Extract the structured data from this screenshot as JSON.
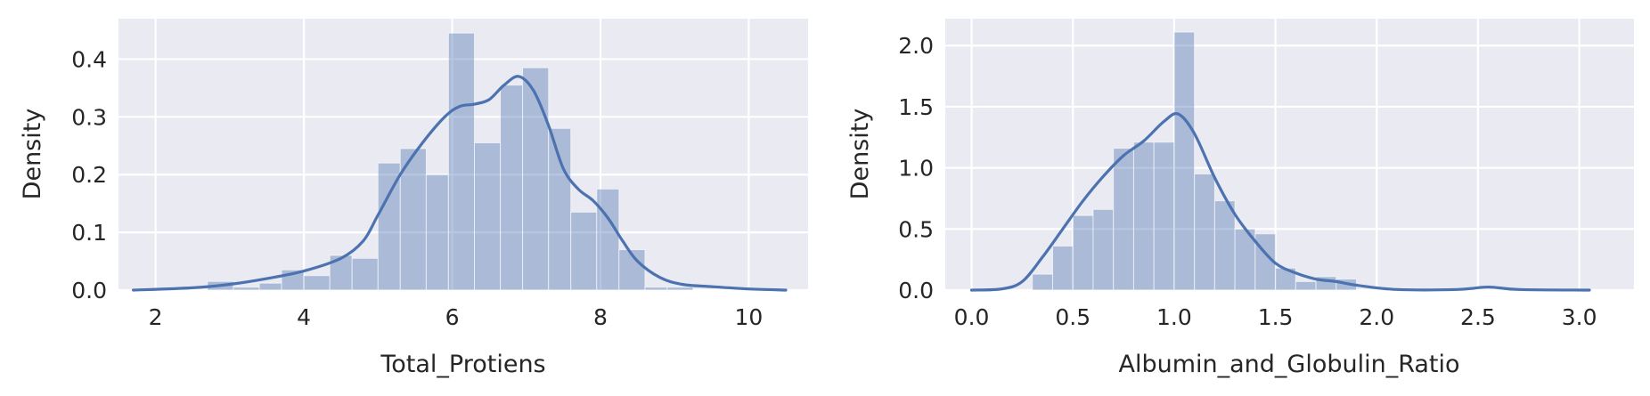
{
  "colors": {
    "series": "#4c72b0",
    "plot_background": "#eaeaf2",
    "grid": "#ffffff"
  },
  "chart_data": [
    {
      "type": "histogram",
      "xlabel": "Total_Protiens",
      "ylabel": "Density",
      "xlim": [
        1.5,
        10.8
      ],
      "ylim": [
        0.0,
        0.47
      ],
      "xticks": [
        2,
        4,
        6,
        8,
        10
      ],
      "yticks": [
        0.0,
        0.1,
        0.2,
        0.3,
        0.4
      ],
      "ytick_labels": [
        "0.0",
        "0.1",
        "0.2",
        "0.3",
        "0.4"
      ],
      "grid": true,
      "bins": [
        {
          "x0": 2.7,
          "x1": 3.05,
          "density": 0.015
        },
        {
          "x0": 3.05,
          "x1": 3.4,
          "density": 0.005
        },
        {
          "x0": 3.4,
          "x1": 3.7,
          "density": 0.012
        },
        {
          "x0": 3.7,
          "x1": 4.0,
          "density": 0.035
        },
        {
          "x0": 4.0,
          "x1": 4.35,
          "density": 0.025
        },
        {
          "x0": 4.35,
          "x1": 4.65,
          "density": 0.06
        },
        {
          "x0": 4.65,
          "x1": 5.0,
          "density": 0.055
        },
        {
          "x0": 5.0,
          "x1": 5.3,
          "density": 0.22
        },
        {
          "x0": 5.3,
          "x1": 5.65,
          "density": 0.245
        },
        {
          "x0": 5.65,
          "x1": 5.95,
          "density": 0.2
        },
        {
          "x0": 5.95,
          "x1": 6.3,
          "density": 0.445
        },
        {
          "x0": 6.3,
          "x1": 6.65,
          "density": 0.255
        },
        {
          "x0": 6.65,
          "x1": 6.95,
          "density": 0.355
        },
        {
          "x0": 6.95,
          "x1": 7.3,
          "density": 0.385
        },
        {
          "x0": 7.3,
          "x1": 7.6,
          "density": 0.28
        },
        {
          "x0": 7.6,
          "x1": 7.95,
          "density": 0.135
        },
        {
          "x0": 7.95,
          "x1": 8.25,
          "density": 0.175
        },
        {
          "x0": 8.25,
          "x1": 8.6,
          "density": 0.07
        },
        {
          "x0": 8.6,
          "x1": 8.9,
          "density": 0.005
        },
        {
          "x0": 8.9,
          "x1": 9.25,
          "density": 0.005
        }
      ],
      "kde": {
        "x": [
          1.7,
          2.5,
          3.0,
          3.5,
          4.0,
          4.5,
          4.8,
          5.0,
          5.3,
          5.6,
          5.9,
          6.1,
          6.3,
          6.5,
          6.7,
          6.9,
          7.1,
          7.3,
          7.5,
          7.7,
          7.9,
          8.1,
          8.3,
          8.5,
          8.8,
          9.1,
          9.5,
          10.0,
          10.5
        ],
        "y": [
          0.0,
          0.004,
          0.01,
          0.02,
          0.033,
          0.055,
          0.085,
          0.13,
          0.2,
          0.255,
          0.3,
          0.318,
          0.322,
          0.33,
          0.355,
          0.37,
          0.345,
          0.285,
          0.21,
          0.175,
          0.155,
          0.125,
          0.085,
          0.05,
          0.022,
          0.01,
          0.006,
          0.002,
          0.0
        ]
      }
    },
    {
      "type": "histogram",
      "xlabel": "Albumin_and_Globulin_Ratio",
      "ylabel": "Density",
      "xlim": [
        -0.13,
        3.27
      ],
      "ylim": [
        0.0,
        2.22
      ],
      "xticks": [
        0.0,
        0.5,
        1.0,
        1.5,
        2.0,
        2.5,
        3.0
      ],
      "xtick_labels": [
        "0.0",
        "0.5",
        "1.0",
        "1.5",
        "2.0",
        "2.5",
        "3.0"
      ],
      "yticks": [
        0.0,
        0.5,
        1.0,
        1.5,
        2.0
      ],
      "ytick_labels": [
        "0.0",
        "0.5",
        "1.0",
        "1.5",
        "2.0"
      ],
      "grid": true,
      "bins": [
        {
          "x0": 0.3,
          "x1": 0.4,
          "density": 0.13
        },
        {
          "x0": 0.4,
          "x1": 0.5,
          "density": 0.36
        },
        {
          "x0": 0.5,
          "x1": 0.6,
          "density": 0.61
        },
        {
          "x0": 0.6,
          "x1": 0.7,
          "density": 0.66
        },
        {
          "x0": 0.7,
          "x1": 0.8,
          "density": 1.16
        },
        {
          "x0": 0.8,
          "x1": 0.9,
          "density": 1.21
        },
        {
          "x0": 0.9,
          "x1": 1.0,
          "density": 1.21
        },
        {
          "x0": 1.0,
          "x1": 1.1,
          "density": 2.11
        },
        {
          "x0": 1.1,
          "x1": 1.2,
          "density": 0.95
        },
        {
          "x0": 1.2,
          "x1": 1.3,
          "density": 0.73
        },
        {
          "x0": 1.3,
          "x1": 1.4,
          "density": 0.5
        },
        {
          "x0": 1.4,
          "x1": 1.5,
          "density": 0.46
        },
        {
          "x0": 1.5,
          "x1": 1.6,
          "density": 0.18
        },
        {
          "x0": 1.6,
          "x1": 1.7,
          "density": 0.07
        },
        {
          "x0": 1.7,
          "x1": 1.8,
          "density": 0.11
        },
        {
          "x0": 1.8,
          "x1": 1.9,
          "density": 0.09
        }
      ],
      "kde": {
        "x": [
          0.0,
          0.15,
          0.25,
          0.35,
          0.45,
          0.55,
          0.65,
          0.75,
          0.85,
          0.95,
          1.02,
          1.1,
          1.2,
          1.3,
          1.4,
          1.5,
          1.6,
          1.7,
          1.8,
          1.9,
          2.1,
          2.4,
          2.55,
          2.7,
          3.05
        ],
        "y": [
          0.0,
          0.01,
          0.07,
          0.27,
          0.5,
          0.73,
          0.93,
          1.1,
          1.22,
          1.38,
          1.44,
          1.28,
          0.92,
          0.62,
          0.4,
          0.22,
          0.14,
          0.09,
          0.07,
          0.04,
          0.005,
          0.005,
          0.025,
          0.005,
          0.0
        ]
      }
    }
  ]
}
